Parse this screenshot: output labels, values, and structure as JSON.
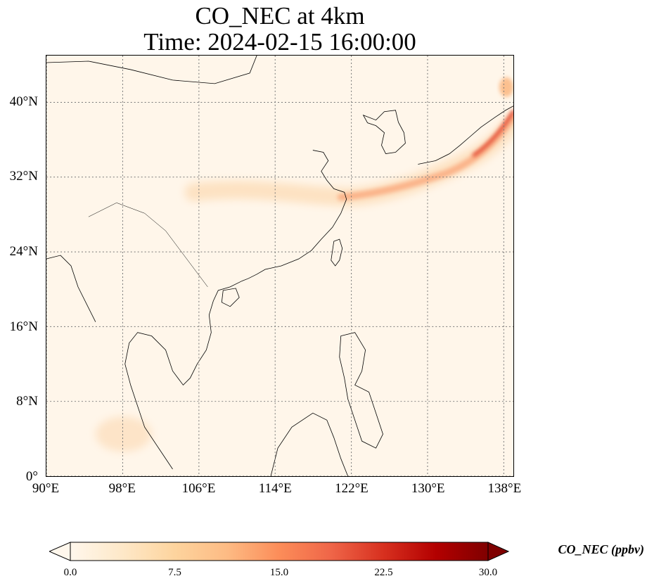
{
  "title": {
    "line1": "CO_NEC at 4km",
    "line2": "Time: 2024-02-15 16:00:00"
  },
  "map": {
    "lon_range": [
      90,
      139
    ],
    "lat_range": [
      0,
      45
    ],
    "grid": "dotted",
    "x_ticks": [
      {
        "value": 90,
        "label": "90°E"
      },
      {
        "value": 98,
        "label": "98°E"
      },
      {
        "value": 106,
        "label": "106°E"
      },
      {
        "value": 114,
        "label": "114°E"
      },
      {
        "value": 122,
        "label": "122°E"
      },
      {
        "value": 130,
        "label": "130°E"
      },
      {
        "value": 138,
        "label": "138°E"
      }
    ],
    "y_ticks": [
      {
        "value": 0,
        "label": "0°"
      },
      {
        "value": 8,
        "label": "8°N"
      },
      {
        "value": 16,
        "label": "16°N"
      },
      {
        "value": 24,
        "label": "24°N"
      },
      {
        "value": 32,
        "label": "32°N"
      },
      {
        "value": 40,
        "label": "40°N"
      }
    ]
  },
  "colorbar": {
    "label": "CO_NEC (ppbv)",
    "range": [
      0,
      30
    ],
    "extend": "both",
    "ticks": [
      {
        "value": 0,
        "label": "0.0"
      },
      {
        "value": 7.5,
        "label": "7.5"
      },
      {
        "value": 15,
        "label": "15.0"
      },
      {
        "value": 22.5,
        "label": "22.5"
      },
      {
        "value": 30,
        "label": "30.0"
      }
    ],
    "colormap": "OrRd",
    "colors": [
      "#fff7ec",
      "#fee8c8",
      "#fdd49e",
      "#fdbb84",
      "#fc8d59",
      "#ef6548",
      "#d7301f",
      "#b30000",
      "#7f0000"
    ]
  }
}
